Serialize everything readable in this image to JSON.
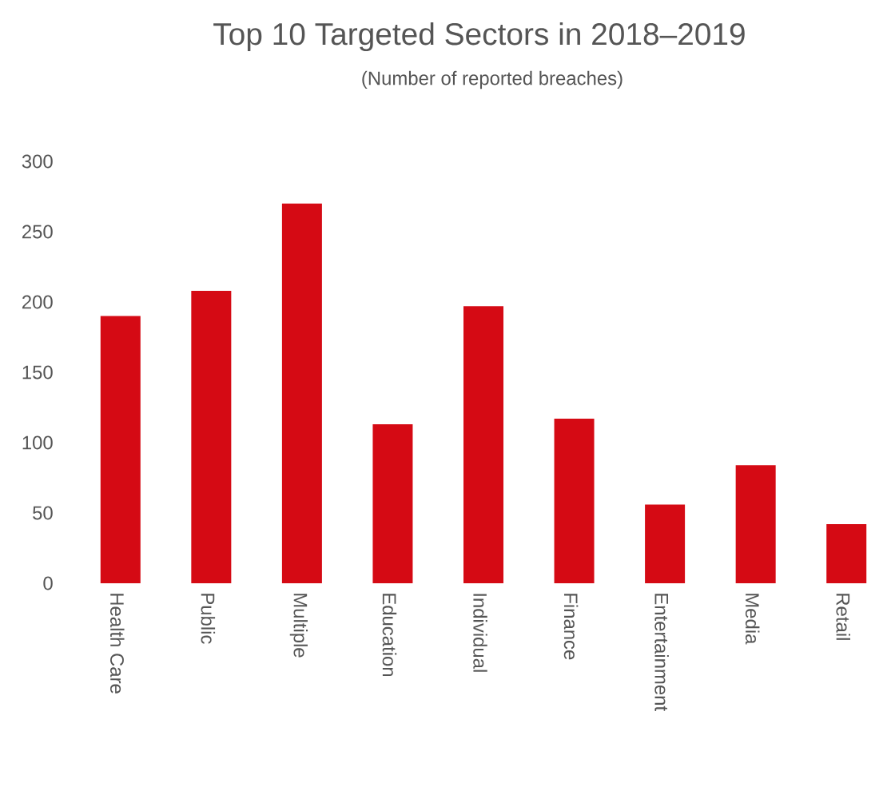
{
  "chart_data": {
    "type": "bar",
    "title": "Top 10 Targeted Sectors in 2018–2019",
    "subtitle": "(Number of reported breaches)",
    "categories": [
      "Health Care",
      "Public",
      "Multiple",
      "Education",
      "Individual",
      "Finance",
      "Entertainment",
      "Media",
      "Retail"
    ],
    "values": [
      190,
      208,
      270,
      113,
      197,
      117,
      56,
      84,
      42
    ],
    "color": "#d50a14",
    "ylim": [
      0,
      300
    ],
    "yticks": [
      0,
      50,
      100,
      150,
      200,
      250,
      300
    ]
  }
}
